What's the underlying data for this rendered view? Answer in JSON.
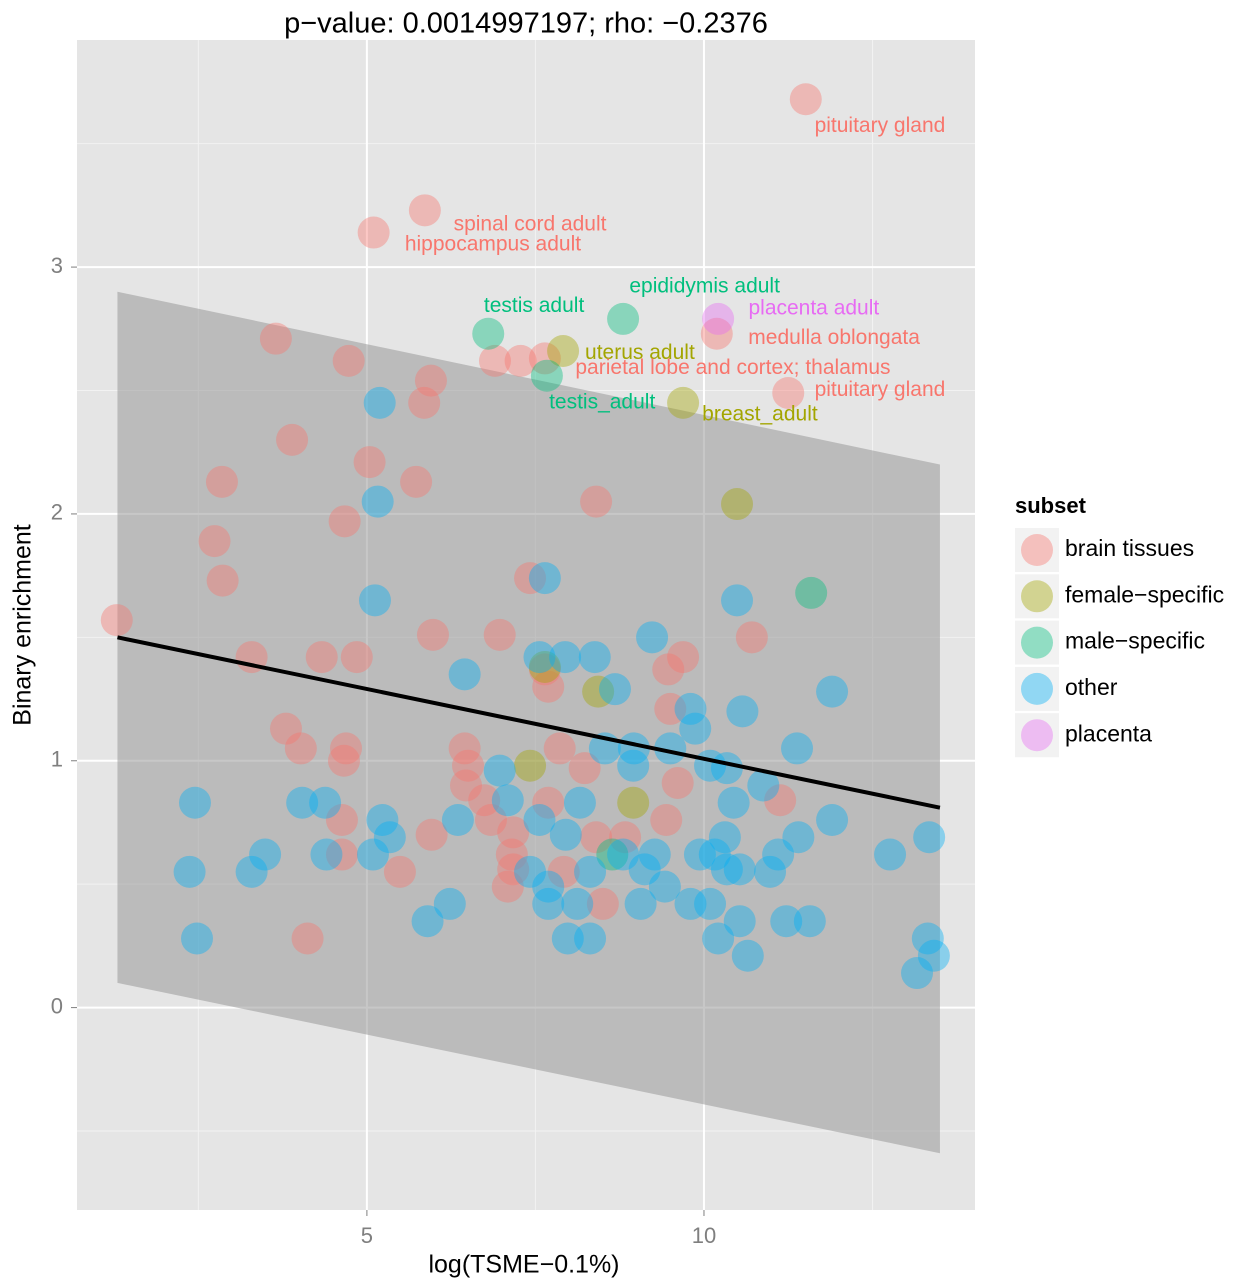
{
  "chart_data": {
    "type": "scatter",
    "title": "p−value: 0.0014997197; rho: −0.2376",
    "x_label": "log(TSME−0.1%)",
    "y_label": "Binary enrichment",
    "legend_title": "subset",
    "xlim": [
      0.7,
      14.02
    ],
    "ylim": [
      -0.82,
      3.92
    ],
    "xticks": [
      5,
      10
    ],
    "yticks": [
      0,
      1,
      2,
      3
    ],
    "minor_grid_x": [
      2.5,
      7.5,
      12.5
    ],
    "minor_grid_y": [
      -0.5,
      0.5,
      1.5,
      2.5,
      3.5
    ],
    "grid": true,
    "regression": {
      "x": [
        1.3,
        13.5
      ],
      "y": [
        1.5,
        0.81
      ]
    },
    "band": {
      "x": [
        1.3,
        13.5
      ],
      "upper": [
        2.9,
        2.2
      ],
      "lower": [
        0.1,
        -0.59
      ]
    },
    "series": [
      {
        "name": "brain tissues",
        "color": "#F8766D",
        "x": [
          11.51,
          5.86,
          5.1,
          10.19,
          11.25,
          3.65,
          4.73,
          5.95,
          5.85,
          6.9,
          7.28,
          7.64,
          3.89,
          5.04,
          2.85,
          5.73,
          8.4,
          4.67,
          2.74,
          2.86,
          1.29,
          7.42,
          5.98,
          6.97,
          10.71,
          3.29,
          4.33,
          4.85,
          9.69,
          9.47,
          7.64,
          7.69,
          9.5,
          3.8,
          4.02,
          4.69,
          4.66,
          6.45,
          6.5,
          7.86,
          8.23,
          9.61,
          6.47,
          6.74,
          7.69,
          11.13,
          4.63,
          6.84,
          9.44,
          5.96,
          7.17,
          8.4,
          8.83,
          4.63,
          7.15,
          7.17,
          5.49,
          7.09,
          7.92,
          4.12,
          8.5
        ],
        "y": [
          3.68,
          3.23,
          3.14,
          2.73,
          2.49,
          2.71,
          2.62,
          2.54,
          2.45,
          2.62,
          2.62,
          2.63,
          2.3,
          2.21,
          2.13,
          2.13,
          2.05,
          1.97,
          1.89,
          1.73,
          1.57,
          1.74,
          1.51,
          1.51,
          1.5,
          1.42,
          1.42,
          1.42,
          1.42,
          1.37,
          1.37,
          1.3,
          1.21,
          1.13,
          1.05,
          1.05,
          1.0,
          1.05,
          0.98,
          1.05,
          0.97,
          0.91,
          0.9,
          0.84,
          0.83,
          0.84,
          0.76,
          0.76,
          0.76,
          0.7,
          0.71,
          0.69,
          0.69,
          0.62,
          0.62,
          0.56,
          0.55,
          0.49,
          0.55,
          0.28,
          0.42
        ]
      },
      {
        "name": "female−specific",
        "color": "#A3A500",
        "x": [
          7.91,
          9.69,
          10.49,
          8.43,
          8.95,
          7.42,
          7.64
        ],
        "y": [
          2.66,
          2.45,
          2.04,
          1.28,
          0.83,
          0.98,
          1.38
        ]
      },
      {
        "name": "male−specific",
        "color": "#00BF7D",
        "x": [
          6.8,
          8.8,
          7.67,
          11.59,
          8.64
        ],
        "y": [
          2.73,
          2.79,
          2.56,
          1.68,
          0.62
        ]
      },
      {
        "name": "other",
        "color": "#00B0F6",
        "x": [
          5.19,
          5.16,
          5.12,
          7.64,
          10.49,
          9.23,
          6.45,
          7.56,
          7.94,
          8.38,
          8.68,
          11.9,
          10.57,
          9.8,
          9.87,
          8.53,
          8.96,
          9.5,
          11.38,
          8.95,
          10.09,
          10.34,
          10.88,
          6.97,
          2.45,
          4.04,
          4.38,
          7.09,
          8.16,
          10.44,
          11.9,
          6.35,
          7.56,
          5.23,
          5.34,
          7.95,
          10.31,
          11.4,
          13.34,
          3.49,
          4.4,
          5.09,
          8.8,
          9.27,
          9.94,
          10.16,
          10.53,
          11.1,
          12.76,
          2.37,
          3.29,
          7.42,
          8.31,
          9.12,
          10.34,
          10.98,
          7.69,
          9.42,
          5.9,
          6.23,
          7.69,
          8.12,
          9.06,
          9.8,
          10.09,
          10.53,
          11.22,
          11.57,
          2.48,
          7.98,
          8.31,
          10.21,
          10.65,
          13.32,
          13.41,
          13.16
        ],
        "y": [
          2.45,
          2.05,
          1.65,
          1.74,
          1.65,
          1.5,
          1.35,
          1.42,
          1.42,
          1.42,
          1.29,
          1.28,
          1.2,
          1.21,
          1.13,
          1.05,
          1.05,
          1.05,
          1.05,
          0.98,
          0.98,
          0.97,
          0.9,
          0.96,
          0.83,
          0.83,
          0.83,
          0.84,
          0.83,
          0.83,
          0.76,
          0.76,
          0.76,
          0.76,
          0.69,
          0.7,
          0.69,
          0.69,
          0.69,
          0.62,
          0.62,
          0.62,
          0.62,
          0.62,
          0.62,
          0.62,
          0.56,
          0.62,
          0.62,
          0.55,
          0.55,
          0.55,
          0.55,
          0.56,
          0.56,
          0.55,
          0.49,
          0.49,
          0.35,
          0.42,
          0.42,
          0.42,
          0.42,
          0.42,
          0.42,
          0.35,
          0.35,
          0.35,
          0.28,
          0.28,
          0.28,
          0.28,
          0.21,
          0.28,
          0.21,
          0.14
        ]
      },
      {
        "name": "placenta",
        "color": "#E76BF3",
        "x": [
          10.21
        ],
        "y": [
          2.79
        ]
      }
    ],
    "annotations": [
      {
        "text": "pituitary gland",
        "x": 12.61,
        "y": 3.57,
        "color": "#F8766D"
      },
      {
        "text": "spinal cord adult",
        "x": 7.42,
        "y": 3.17,
        "color": "#F8766D"
      },
      {
        "text": "hippocampus adult",
        "x": 6.87,
        "y": 3.09,
        "color": "#F8766D"
      },
      {
        "text": "epididymis adult",
        "x": 10.01,
        "y": 2.92,
        "color": "#00BF7D"
      },
      {
        "text": "testis adult",
        "x": 7.48,
        "y": 2.84,
        "color": "#00BF7D"
      },
      {
        "text": "placenta adult",
        "x": 11.63,
        "y": 2.83,
        "color": "#E76BF3"
      },
      {
        "text": "medulla oblongata",
        "x": 11.93,
        "y": 2.71,
        "color": "#F8766D"
      },
      {
        "text": "uterus adult",
        "x": 9.05,
        "y": 2.65,
        "color": "#A3A500"
      },
      {
        "text": "parietal lobe and cortex; thalamus",
        "x": 10.43,
        "y": 2.59,
        "color": "#F8766D"
      },
      {
        "text": "pituitary gland",
        "x": 12.61,
        "y": 2.5,
        "color": "#F8766D"
      },
      {
        "text": "testis_adult",
        "x": 8.49,
        "y": 2.45,
        "color": "#00BF7D"
      },
      {
        "text": "breast_adult",
        "x": 10.83,
        "y": 2.4,
        "color": "#A3A500"
      }
    ]
  }
}
